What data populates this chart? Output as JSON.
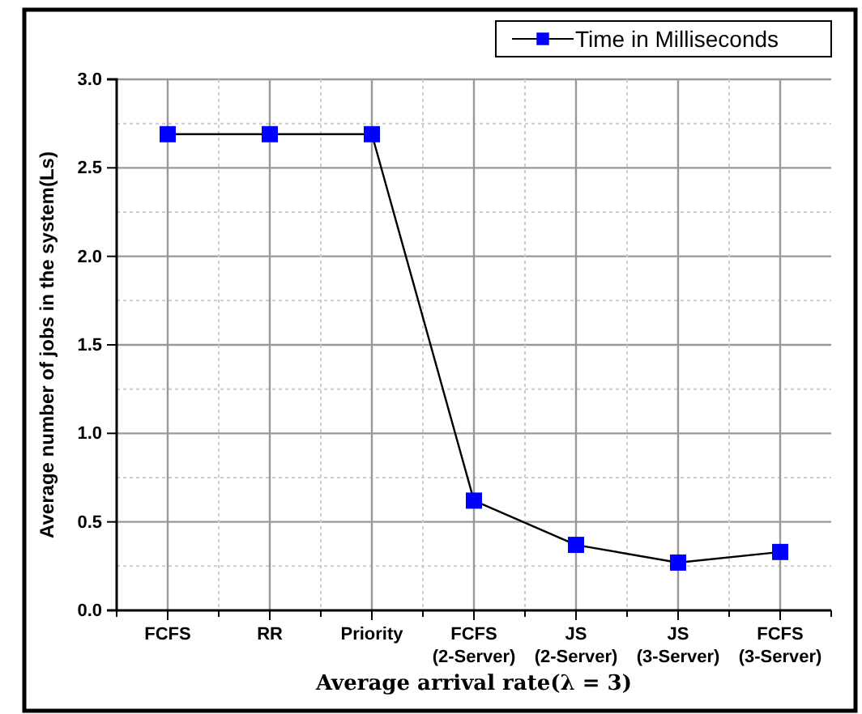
{
  "chart_data": {
    "type": "line",
    "xlabel": "Average arrival rate(λ = 3)",
    "ylabel": "Average number of jobs in the system(Ls)",
    "categories": [
      "FCFS",
      "RR",
      "Priority",
      "FCFS\n(2-Server)",
      "JS\n(2-Server)",
      "JS\n(3-Server)",
      "FCFS\n(3-Server)"
    ],
    "series": [
      {
        "name": "Time in Milliseconds",
        "color": "#0000ff",
        "values": [
          2.69,
          2.69,
          2.69,
          0.62,
          0.37,
          0.27,
          0.33
        ]
      }
    ],
    "ylim": [
      0,
      3
    ],
    "yticks": [
      {
        "value": 0,
        "label": "0.0"
      },
      {
        "value": 0.5,
        "label": "0.5"
      },
      {
        "value": 1,
        "label": "1.0"
      },
      {
        "value": 1.5,
        "label": "1.5"
      },
      {
        "value": 2,
        "label": "2.0"
      },
      {
        "value": 2.5,
        "label": "2.5"
      },
      {
        "value": 3,
        "label": "3.0"
      }
    ],
    "grid": true,
    "legend": "top right",
    "marker": "square",
    "line_style": "solid"
  }
}
